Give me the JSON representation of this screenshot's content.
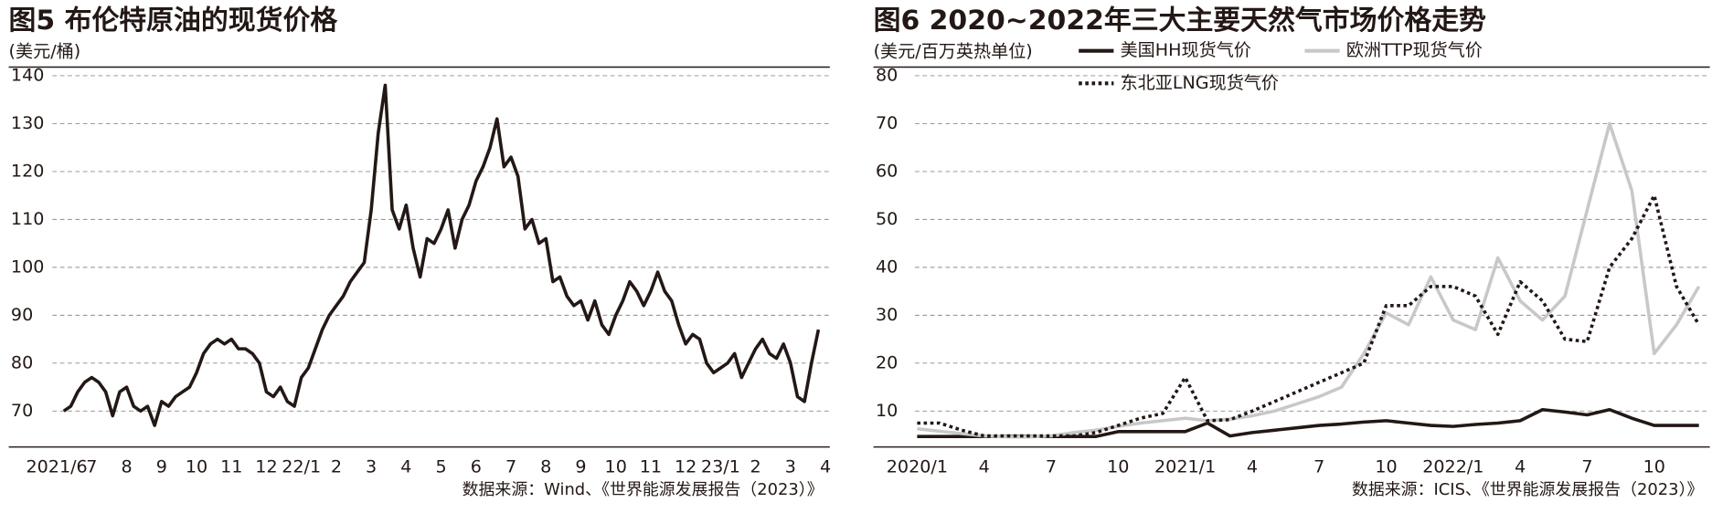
{
  "chart_data": [
    {
      "type": "line",
      "title": "图5 布伦特原油的现货价格",
      "ylabel": "(美元/桶)",
      "source": "数据来源：Wind、《世界能源发展报告（2023）》",
      "color": "#231815",
      "grid": true,
      "xlim": [
        -1.375,
        22.125
      ],
      "ylim": [
        62.5,
        141.8
      ],
      "yticks": [
        70,
        80,
        90,
        100,
        110,
        120,
        130,
        140
      ],
      "xticks": [
        {
          "value": 0,
          "label": "2021/6"
        },
        {
          "value": 1,
          "label": "7"
        },
        {
          "value": 2,
          "label": "8"
        },
        {
          "value": 3,
          "label": "9"
        },
        {
          "value": 4,
          "label": "10"
        },
        {
          "value": 5,
          "label": "11"
        },
        {
          "value": 6,
          "label": "12"
        },
        {
          "value": 7,
          "label": "22/1"
        },
        {
          "value": 8,
          "label": "2"
        },
        {
          "value": 9,
          "label": "3"
        },
        {
          "value": 10,
          "label": "4"
        },
        {
          "value": 11,
          "label": "5"
        },
        {
          "value": 12,
          "label": "6"
        },
        {
          "value": 13,
          "label": "7"
        },
        {
          "value": 14,
          "label": "8"
        },
        {
          "value": 15,
          "label": "9"
        },
        {
          "value": 16,
          "label": "10"
        },
        {
          "value": 17,
          "label": "11"
        },
        {
          "value": 18,
          "label": "12"
        },
        {
          "value": 19,
          "label": "23/1"
        },
        {
          "value": 20,
          "label": "2"
        },
        {
          "value": 21,
          "label": "3"
        },
        {
          "value": 22,
          "label": "4"
        }
      ],
      "x": [
        0.2,
        0.4,
        0.6,
        0.8,
        1.0,
        1.2,
        1.4,
        1.6,
        1.8,
        2.0,
        2.2,
        2.4,
        2.6,
        2.8,
        3.0,
        3.2,
        3.4,
        3.6,
        3.8,
        4.0,
        4.2,
        4.4,
        4.6,
        4.8,
        5.0,
        5.2,
        5.4,
        5.6,
        5.8,
        6.0,
        6.2,
        6.4,
        6.6,
        6.8,
        7.0,
        7.2,
        7.4,
        7.6,
        7.8,
        8.0,
        8.2,
        8.4,
        8.6,
        8.8,
        9.0,
        9.2,
        9.4,
        9.6,
        9.8,
        10.0,
        10.2,
        10.4,
        10.6,
        10.8,
        11.0,
        11.2,
        11.4,
        11.6,
        11.8,
        12.0,
        12.2,
        12.4,
        12.6,
        12.8,
        13.0,
        13.2,
        13.4,
        13.6,
        13.8,
        14.0,
        14.2,
        14.4,
        14.6,
        14.8,
        15.0,
        15.2,
        15.4,
        15.6,
        15.8,
        16.0,
        16.2,
        16.4,
        16.6,
        16.8,
        17.0,
        17.2,
        17.4,
        17.6,
        17.8,
        18.0,
        18.2,
        18.4,
        18.6,
        18.8,
        19.0,
        19.2,
        19.4,
        19.6,
        19.8,
        20.0,
        20.2,
        20.4,
        20.6,
        20.8,
        21.0,
        21.2,
        21.4,
        21.6,
        21.8
      ],
      "values": [
        70,
        71,
        74,
        76,
        77,
        76,
        74,
        69,
        74,
        75,
        71,
        70,
        71,
        67,
        72,
        71,
        73,
        74,
        75,
        78,
        82,
        84,
        85,
        84,
        85,
        83,
        83,
        82,
        80,
        74,
        73,
        75,
        72,
        71,
        77,
        79,
        83,
        87,
        90,
        92,
        94,
        97,
        99,
        101,
        112,
        128,
        138,
        112,
        108,
        113,
        104,
        98,
        106,
        105,
        108,
        112,
        104,
        110,
        113,
        118,
        121,
        125,
        131,
        121,
        123,
        119,
        108,
        110,
        105,
        106,
        97,
        98,
        94,
        92,
        93,
        89,
        93,
        88,
        86,
        90,
        93,
        97,
        95,
        92,
        95,
        99,
        95,
        93,
        88,
        84,
        86,
        85,
        80,
        78,
        79,
        80,
        82,
        77,
        80,
        83,
        85,
        82,
        81,
        84,
        80,
        73,
        72,
        80,
        87
      ]
    },
    {
      "type": "line",
      "title": "图6 2020~2022年三大主要天然气市场价格走势",
      "ylabel": "(美元/百万英热单位)",
      "source": "数据来源：ICIS、《世界能源发展报告（2023）》",
      "grid": true,
      "ylim": [
        2.5,
        81.8
      ],
      "yticks": [
        10,
        20,
        30,
        40,
        50,
        60,
        70,
        80
      ],
      "categories": [
        "2020/1",
        null,
        null,
        "4",
        null,
        null,
        "7",
        null,
        null,
        "10",
        null,
        null,
        "2021/1",
        null,
        null,
        "4",
        null,
        null,
        "7",
        null,
        null,
        "10",
        null,
        null,
        "2022/1",
        null,
        null,
        "4",
        null,
        null,
        "7",
        null,
        null,
        "10",
        null,
        null
      ],
      "series": [
        {
          "name": "美国HH现货气价",
          "color": "#231815",
          "style": "solid",
          "values": [
            4.7,
            4.7,
            4.7,
            4.7,
            4.7,
            4.7,
            4.7,
            4.7,
            4.7,
            5.7,
            5.7,
            5.7,
            5.7,
            7.5,
            4.8,
            5.5,
            6.0,
            6.5,
            7.0,
            7.3,
            7.7,
            8.0,
            7.5,
            7.0,
            6.8,
            7.2,
            7.5,
            8.0,
            10.3,
            9.8,
            9.2,
            10.3,
            8.5,
            7.0,
            7.0,
            7.0
          ]
        },
        {
          "name": "欧洲TTP现货气价",
          "color": "#c8c8c8",
          "style": "solid",
          "values": [
            6.3,
            5.8,
            5.3,
            4.8,
            4.6,
            4.6,
            4.8,
            5.5,
            6.0,
            6.8,
            7.5,
            8.0,
            8.5,
            8.0,
            8.3,
            9.0,
            10.0,
            11.5,
            13,
            15,
            22,
            30.5,
            28,
            38,
            29,
            27,
            42,
            33,
            29,
            34,
            52,
            70,
            56,
            22,
            28,
            36
          ]
        },
        {
          "name": "东北亚LNG现货气价",
          "color": "#231815",
          "style": "dotted",
          "values": [
            7.5,
            7.5,
            6.0,
            4.8,
            4.8,
            4.8,
            4.8,
            4.8,
            5.5,
            7.0,
            8.5,
            9.5,
            17,
            8.0,
            8.2,
            10,
            12,
            14,
            16,
            18,
            20,
            32,
            32,
            36,
            36,
            34,
            26,
            37,
            33,
            25,
            24.5,
            40,
            46,
            55,
            36,
            28
          ]
        }
      ]
    }
  ]
}
